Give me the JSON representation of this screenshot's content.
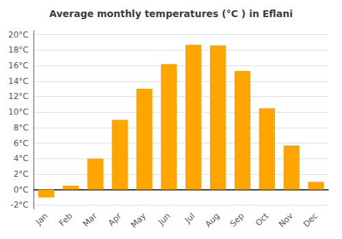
{
  "chart_data": {
    "type": "bar",
    "title": "Average monthly temperatures (°C ) in Eflani",
    "categories": [
      "Jan",
      "Feb",
      "Mar",
      "Apr",
      "May",
      "Jun",
      "Jul",
      "Aug",
      "Sep",
      "Oct",
      "Nov",
      "Dec"
    ],
    "values": [
      -1.0,
      0.5,
      4.0,
      9.0,
      13.0,
      16.2,
      18.7,
      18.6,
      15.3,
      10.5,
      5.7,
      1.0
    ],
    "color": "#FFA500",
    "ylim": [
      -2.5,
      20.5
    ],
    "yticks": [
      {
        "value": -2,
        "label": "-2°C"
      },
      {
        "value": 0,
        "label": "0°C"
      },
      {
        "value": 2,
        "label": "2°C"
      },
      {
        "value": 4,
        "label": "4°C"
      },
      {
        "value": 6,
        "label": "6°C"
      },
      {
        "value": 8,
        "label": "8°C"
      },
      {
        "value": 10,
        "label": "10°C"
      },
      {
        "value": 12,
        "label": "12°C"
      },
      {
        "value": 14,
        "label": "14°C"
      },
      {
        "value": 16,
        "label": "16°C"
      },
      {
        "value": 18,
        "label": "18°C"
      },
      {
        "value": 20,
        "label": "20°C"
      }
    ],
    "grid": true
  }
}
